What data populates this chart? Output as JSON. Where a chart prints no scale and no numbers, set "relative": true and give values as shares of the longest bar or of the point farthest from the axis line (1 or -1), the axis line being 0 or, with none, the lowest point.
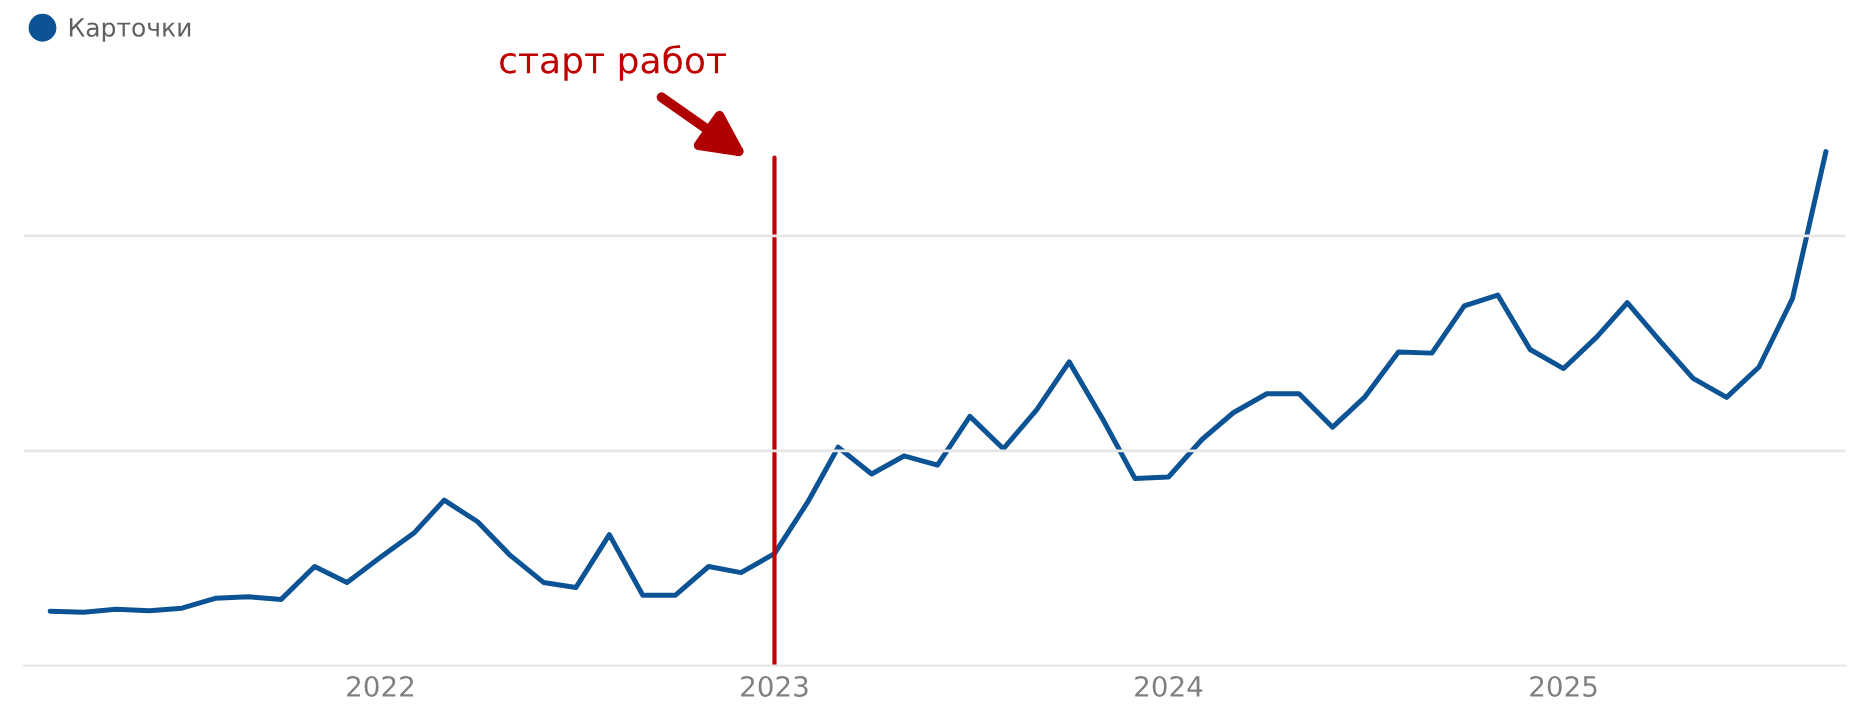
{
  "chart_data": {
    "type": "line",
    "relative": true,
    "x": [
      "2021-03",
      "2021-04",
      "2021-05",
      "2021-06",
      "2021-07",
      "2021-08",
      "2021-09",
      "2021-10",
      "2021-11",
      "2021-12",
      "2022-01",
      "2022-02",
      "2022-03",
      "2022-04",
      "2022-05",
      "2022-06",
      "2022-07",
      "2022-08",
      "2022-09",
      "2022-10",
      "2022-11",
      "2022-12",
      "2023-01",
      "2023-02",
      "2023-03",
      "2023-04",
      "2023-05",
      "2023-06",
      "2023-07",
      "2023-08",
      "2023-09",
      "2023-10",
      "2023-11",
      "2023-12",
      "2024-01",
      "2024-02",
      "2024-03",
      "2024-04",
      "2024-05",
      "2024-06",
      "2024-07",
      "2024-08",
      "2024-09",
      "2024-10",
      "2024-11",
      "2024-12",
      "2025-01",
      "2025-02",
      "2025-03",
      "2025-04",
      "2025-05",
      "2025-06",
      "2025-07",
      "2025-08",
      "2025-09"
    ],
    "series": [
      {
        "name": "Карточки",
        "color": "#0b5394",
        "values": [
          0.106,
          0.104,
          0.11,
          0.107,
          0.112,
          0.131,
          0.134,
          0.129,
          0.193,
          0.162,
          0.211,
          0.258,
          0.322,
          0.28,
          0.215,
          0.162,
          0.152,
          0.255,
          0.137,
          0.137,
          0.193,
          0.181,
          0.218,
          0.319,
          0.425,
          0.373,
          0.408,
          0.39,
          0.485,
          0.422,
          0.498,
          0.591,
          0.48,
          0.364,
          0.367,
          0.44,
          0.492,
          0.529,
          0.529,
          0.464,
          0.523,
          0.61,
          0.608,
          0.7,
          0.721,
          0.615,
          0.578,
          0.64,
          0.706,
          0.63,
          0.559,
          0.522,
          0.581,
          0.714,
          1
        ]
      }
    ],
    "xlim": [
      "2021-02-05",
      "2025-09-19"
    ],
    "xticks": [
      {
        "value": "2022-01",
        "label": "2022"
      },
      {
        "value": "2023-01",
        "label": "2023"
      },
      {
        "value": "2024-01",
        "label": "2024"
      },
      {
        "value": "2025-01",
        "label": "2025"
      }
    ],
    "ref_lines": [
      {
        "axis": "x",
        "value": "2023-01",
        "label": "старт работ",
        "color": "#c00000"
      },
      {
        "axis": "y",
        "value": 0.418,
        "color": "#e6e6e6"
      },
      {
        "axis": "y",
        "value": 0.836,
        "color": "#e6e6e6"
      }
    ],
    "legend": "top left",
    "marker": "none",
    "line_style": "solid"
  }
}
